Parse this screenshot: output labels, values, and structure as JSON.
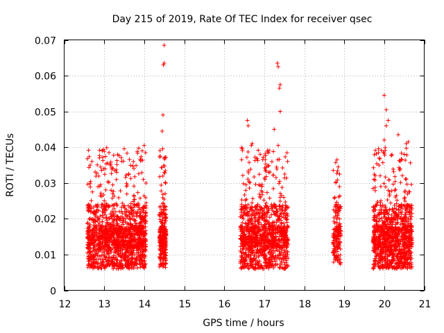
{
  "chart_data": {
    "type": "scatter",
    "title": "Day 215 of 2019, Rate Of TEC Index for receiver qsec",
    "xlabel": "GPS time / hours",
    "ylabel": "ROTI / TECUs",
    "xlim": [
      12,
      21
    ],
    "ylim": [
      0,
      0.07
    ],
    "x_ticks": [
      12,
      13,
      14,
      15,
      16,
      17,
      18,
      19,
      20,
      21
    ],
    "y_ticks": [
      0,
      0.01,
      0.02,
      0.03,
      0.04,
      0.05,
      0.06,
      0.07
    ],
    "x_tick_labels": [
      "12",
      "13",
      "14",
      "15",
      "16",
      "17",
      "18",
      "19",
      "20",
      "21"
    ],
    "y_tick_labels": [
      "0",
      "0.01",
      "0.02",
      "0.03",
      "0.04",
      "0.05",
      "0.06",
      "0.07"
    ],
    "grid": true,
    "marker": "+",
    "color": "#ff0000",
    "clusters": [
      {
        "x_range": [
          12.58,
          14.05
        ],
        "count": 1400,
        "y_min": 0.004,
        "y_typical": 0.012,
        "y_max": 0.04
      },
      {
        "x_range": [
          14.38,
          14.55
        ],
        "count": 260,
        "y_min": 0.004,
        "y_typical": 0.012,
        "y_max": 0.069
      },
      {
        "x_range": [
          16.4,
          17.6
        ],
        "count": 1100,
        "y_min": 0.004,
        "y_typical": 0.012,
        "y_max": 0.064
      },
      {
        "x_range": [
          18.72,
          18.92
        ],
        "count": 160,
        "y_min": 0.005,
        "y_typical": 0.012,
        "y_max": 0.036
      },
      {
        "x_range": [
          19.72,
          20.7
        ],
        "count": 1000,
        "y_min": 0.004,
        "y_typical": 0.012,
        "y_max": 0.055
      }
    ],
    "peaks": [
      {
        "x": 12.65,
        "y": 0.035
      },
      {
        "x": 13.12,
        "y": 0.0385
      },
      {
        "x": 13.15,
        "y": 0.035
      },
      {
        "x": 13.73,
        "y": 0.036
      },
      {
        "x": 14.0,
        "y": 0.0405
      },
      {
        "x": 13.95,
        "y": 0.039
      },
      {
        "x": 14.5,
        "y": 0.0685
      },
      {
        "x": 14.5,
        "y": 0.0635
      },
      {
        "x": 14.48,
        "y": 0.063
      },
      {
        "x": 14.47,
        "y": 0.049
      },
      {
        "x": 14.45,
        "y": 0.0445
      },
      {
        "x": 14.5,
        "y": 0.037
      },
      {
        "x": 16.58,
        "y": 0.0475
      },
      {
        "x": 16.6,
        "y": 0.046
      },
      {
        "x": 16.7,
        "y": 0.041
      },
      {
        "x": 16.68,
        "y": 0.0405
      },
      {
        "x": 17.25,
        "y": 0.045
      },
      {
        "x": 17.33,
        "y": 0.0635
      },
      {
        "x": 17.35,
        "y": 0.0625
      },
      {
        "x": 17.4,
        "y": 0.0575
      },
      {
        "x": 17.38,
        "y": 0.0565
      },
      {
        "x": 17.4,
        "y": 0.05
      },
      {
        "x": 17.35,
        "y": 0.0405
      },
      {
        "x": 18.82,
        "y": 0.0365
      },
      {
        "x": 18.85,
        "y": 0.0345
      },
      {
        "x": 18.88,
        "y": 0.029
      },
      {
        "x": 18.85,
        "y": 0.024
      },
      {
        "x": 20.0,
        "y": 0.0545
      },
      {
        "x": 20.05,
        "y": 0.0505
      },
      {
        "x": 20.1,
        "y": 0.0475
      },
      {
        "x": 20.05,
        "y": 0.046
      },
      {
        "x": 20.0,
        "y": 0.042
      },
      {
        "x": 20.55,
        "y": 0.041
      },
      {
        "x": 20.6,
        "y": 0.0415
      },
      {
        "x": 20.35,
        "y": 0.0435
      },
      {
        "x": 20.5,
        "y": 0.038
      }
    ]
  }
}
